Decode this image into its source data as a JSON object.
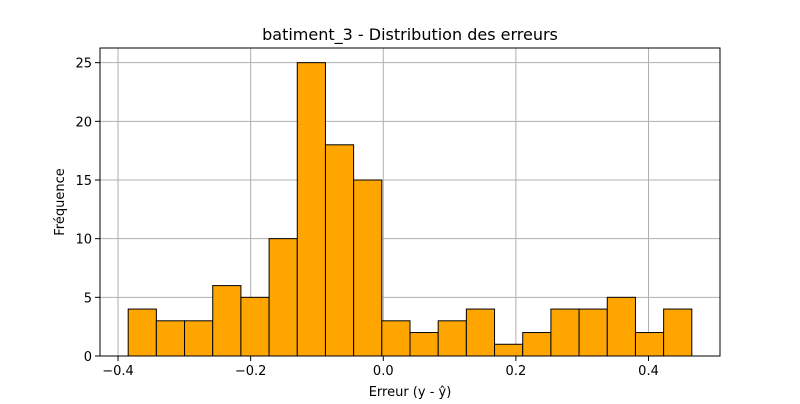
{
  "chart_data": {
    "type": "bar",
    "title": "batiment_3 - Distribution des erreurs",
    "xlabel": "Erreur (y - ŷ)",
    "ylabel": "Fréquence",
    "xlim": [
      -0.4272,
      0.5078
    ],
    "ylim": [
      0,
      26.25
    ],
    "x_ticks": [
      -0.4,
      -0.2,
      0.0,
      0.2,
      0.4
    ],
    "x_tick_labels": [
      "−0.4",
      "−0.2",
      "0.0",
      "0.2",
      "0.4"
    ],
    "y_ticks": [
      0,
      5,
      10,
      15,
      20,
      25
    ],
    "y_tick_labels": [
      "0",
      "5",
      "10",
      "15",
      "20",
      "25"
    ],
    "grid": true,
    "bar_color": "#FFA500",
    "edge_color": "#000000",
    "bins": [
      [
        -0.3847,
        -0.3422
      ],
      [
        -0.3422,
        -0.2997
      ],
      [
        -0.2997,
        -0.2572
      ],
      [
        -0.2572,
        -0.2147
      ],
      [
        -0.2147,
        -0.1722
      ],
      [
        -0.1722,
        -0.1297
      ],
      [
        -0.1297,
        -0.0872
      ],
      [
        -0.0872,
        -0.0447
      ],
      [
        -0.0447,
        -0.0022
      ],
      [
        -0.0022,
        0.0403
      ],
      [
        0.0403,
        0.0828
      ],
      [
        0.0828,
        0.1253
      ],
      [
        0.1253,
        0.1678
      ],
      [
        0.1678,
        0.2103
      ],
      [
        0.2103,
        0.2528
      ],
      [
        0.2528,
        0.2953
      ],
      [
        0.2953,
        0.3378
      ],
      [
        0.3378,
        0.3803
      ],
      [
        0.3803,
        0.4228
      ],
      [
        0.4228,
        0.4653
      ]
    ],
    "values": [
      4,
      3,
      3,
      6,
      5,
      10,
      25,
      18,
      15,
      3,
      2,
      3,
      4,
      1,
      2,
      4,
      4,
      5,
      2,
      4
    ]
  }
}
